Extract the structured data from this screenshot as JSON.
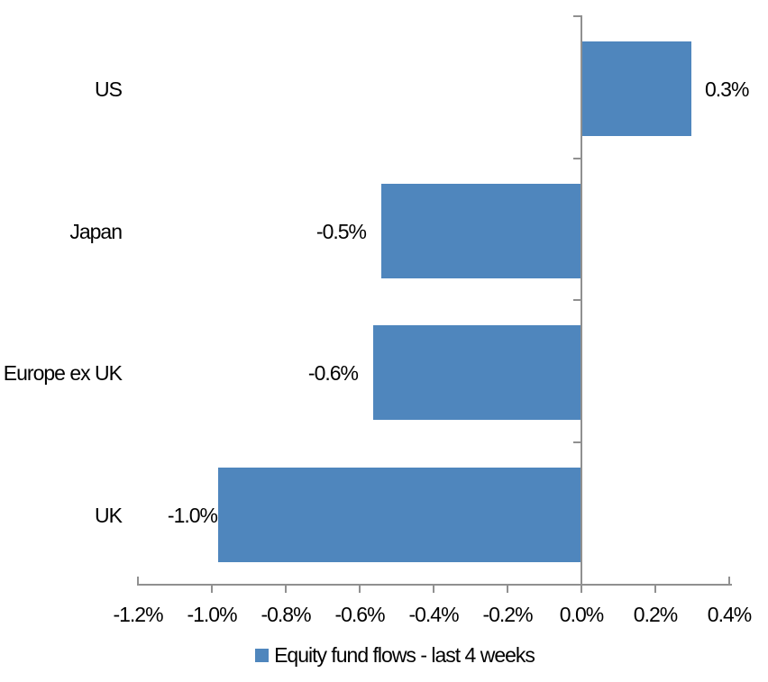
{
  "chart_data": {
    "type": "bar",
    "orientation": "horizontal",
    "title": "",
    "categories": [
      "US",
      "Japan",
      "Europe ex UK",
      "UK"
    ],
    "values": [
      0.3,
      -0.5,
      -0.6,
      -1.0
    ],
    "values_precise": [
      0.295,
      -0.54,
      -0.56,
      -0.98
    ],
    "data_labels": [
      "0.3%",
      "-0.5%",
      "-0.6%",
      "-1.0%"
    ],
    "unit": "%",
    "xlim": [
      -1.2,
      0.4
    ],
    "x_tick_values": [
      -1.2,
      -1.0,
      -0.8,
      -0.6,
      -0.4,
      -0.2,
      0.0,
      0.2,
      0.4
    ],
    "x_tick_labels": [
      "-1.2%",
      "-1.0%",
      "-0.8%",
      "-0.6%",
      "-0.4%",
      "-0.2%",
      "0.0%",
      "0.2%",
      "0.4%"
    ],
    "grid": false,
    "legend_position": "bottom-center",
    "legend": [
      {
        "label": "Equity fund flows - last 4 weeks",
        "color": "#4F86BD"
      }
    ],
    "colors": {
      "bar": "#4F86BD",
      "axis": "#909090",
      "text": "#000000",
      "background": "#FFFFFF"
    }
  }
}
